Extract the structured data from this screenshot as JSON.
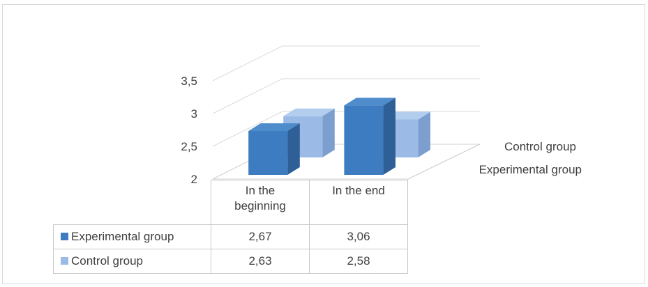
{
  "chart_data": {
    "type": "bar",
    "categories": [
      "In the beginning",
      "In the end"
    ],
    "category_lines": [
      [
        "In the",
        "beginning"
      ],
      [
        "In the end"
      ]
    ],
    "series": [
      {
        "name": "Experimental group",
        "values": [
          2.67,
          3.06
        ],
        "value_labels": [
          "2,67",
          "3,06"
        ],
        "color": "#3d7cc0"
      },
      {
        "name": "Control group",
        "values": [
          2.63,
          2.58
        ],
        "value_labels": [
          "2,63",
          "2,58"
        ],
        "color": "#9bbbe6"
      }
    ],
    "y_ticks": [
      2,
      2.5,
      3,
      3.5
    ],
    "y_tick_labels": [
      "2",
      "2,5",
      "3",
      "3,5"
    ],
    "ylim": [
      2,
      3.5
    ],
    "depth_labels": [
      "Control group",
      "Experimental group"
    ],
    "title": "",
    "xlabel": "",
    "ylabel": "",
    "grid": true,
    "legend": "data-table"
  }
}
